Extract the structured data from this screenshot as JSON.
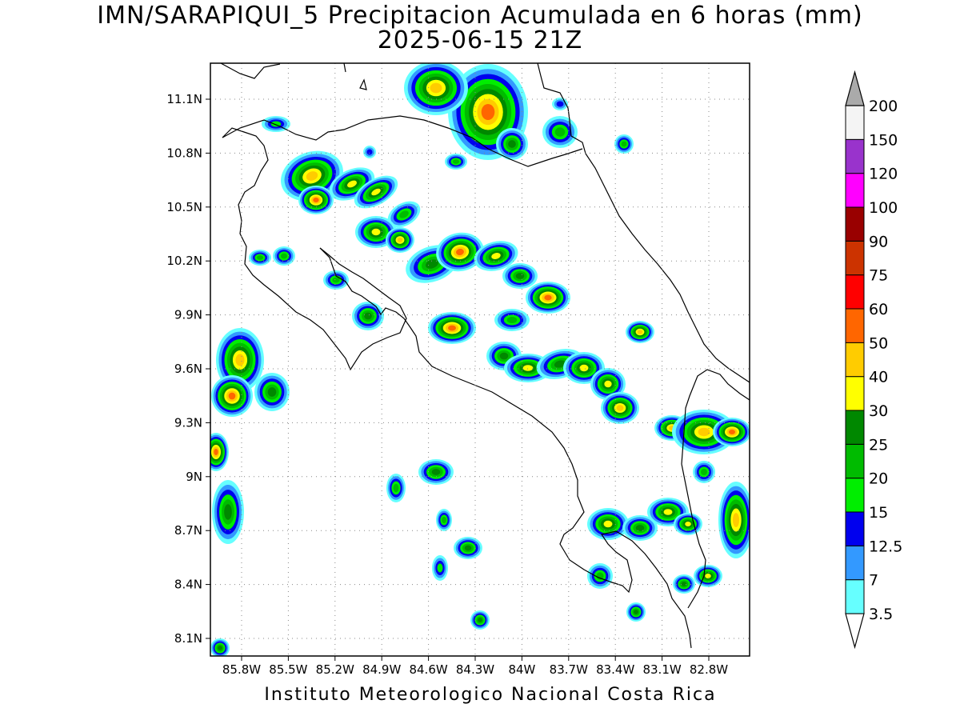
{
  "title": {
    "line1": "IMN/SARAPIQUI_5 Precipitacion Acumulada en 6 horas (mm)",
    "line2": "2025-06-15 21Z"
  },
  "footer": "Instituto Meteorologico Nacional Costa Rica",
  "map": {
    "lat_labels": [
      "11.1N",
      "10.8N",
      "10.5N",
      "10.2N",
      "9.9N",
      "9.6N",
      "9.3N",
      "9N",
      "8.7N",
      "8.4N",
      "8.1N"
    ],
    "lon_labels": [
      "85.8W",
      "85.5W",
      "85.2W",
      "84.9W",
      "84.6W",
      "84.3W",
      "84W",
      "83.7W",
      "83.4W",
      "83.1W",
      "82.8W"
    ]
  },
  "colorbar": {
    "labels": [
      "3.5",
      "7",
      "12.5",
      "15",
      "20",
      "25",
      "30",
      "40",
      "50",
      "60",
      "75",
      "90",
      "100",
      "120",
      "150",
      "200"
    ],
    "colors": [
      "#ffffff",
      "#66ffff",
      "#3399ff",
      "#0000ee",
      "#00ee00",
      "#00bb00",
      "#008800",
      "#ffff00",
      "#ffcc00",
      "#ff6600",
      "#ff0000",
      "#cc3300",
      "#990000",
      "#ff00ff",
      "#9933cc",
      "#f4f4f4",
      "#aaaaaa"
    ]
  }
}
